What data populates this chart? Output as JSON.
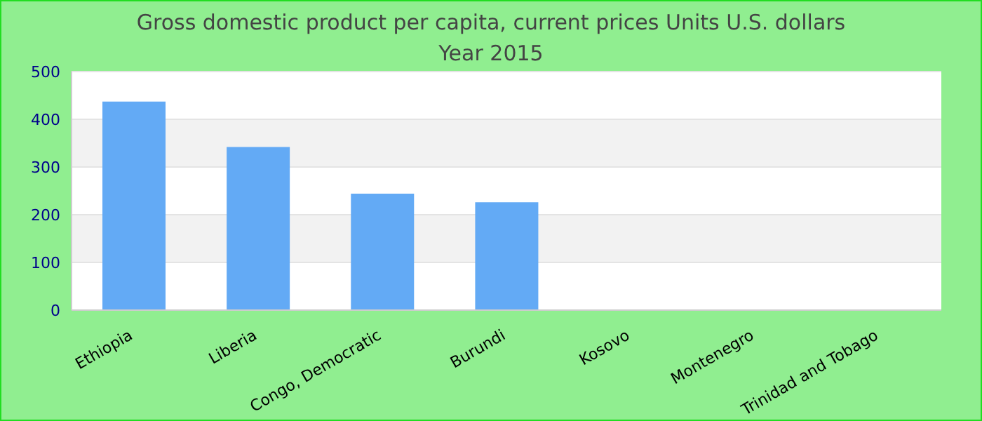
{
  "chart_data": {
    "type": "bar",
    "title": "Gross domestic product per capita, current prices Units U.S. dollars",
    "subtitle": "Year 2015",
    "categories": [
      "Ethiopia",
      "Liberia",
      "Congo, Democratic",
      "Burundi",
      "Kosovo",
      "Montenegro",
      "Trinidad and Tobago"
    ],
    "values": [
      437,
      342,
      244,
      226,
      null,
      null,
      null
    ],
    "color": "#63aaf5",
    "ylim": [
      0,
      500
    ],
    "yticks": [
      0,
      100,
      200,
      300,
      400,
      500
    ],
    "grid": "y"
  }
}
